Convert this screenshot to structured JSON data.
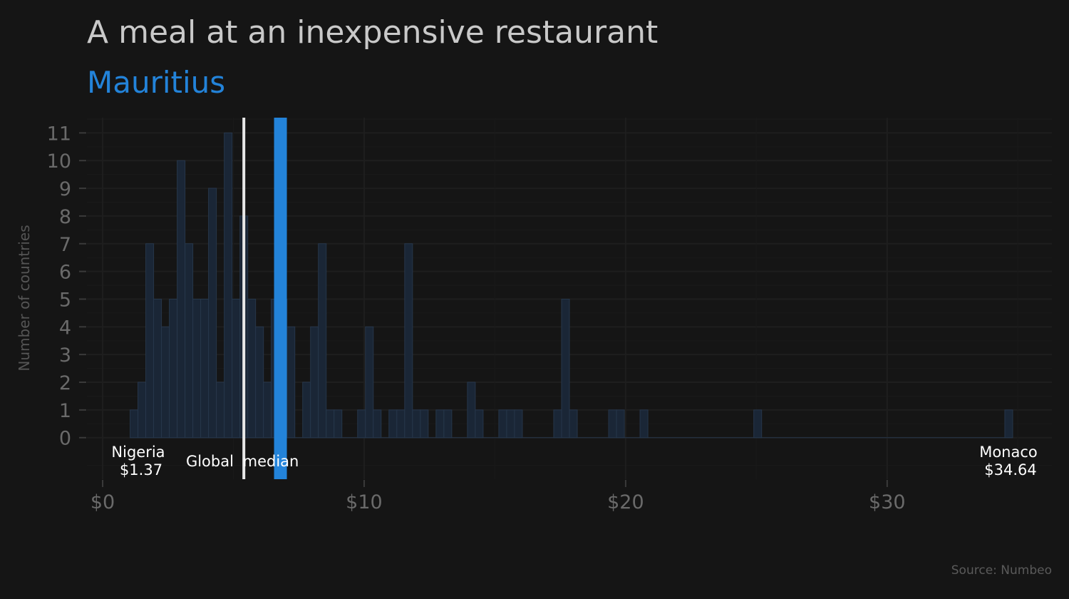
{
  "chart_data": {
    "type": "bar",
    "title": "A meal at an inexpensive restaurant",
    "subtitle": "Mauritius",
    "ylabel": "Number of countries",
    "xlabel": "",
    "bin_width": 0.3,
    "bins": [
      {
        "x0": 1.05,
        "count": 1
      },
      {
        "x0": 1.35,
        "count": 2
      },
      {
        "x0": 1.65,
        "count": 7
      },
      {
        "x0": 1.95,
        "count": 5
      },
      {
        "x0": 2.25,
        "count": 4
      },
      {
        "x0": 2.55,
        "count": 5
      },
      {
        "x0": 2.85,
        "count": 10
      },
      {
        "x0": 3.15,
        "count": 7
      },
      {
        "x0": 3.45,
        "count": 5
      },
      {
        "x0": 3.75,
        "count": 5
      },
      {
        "x0": 4.05,
        "count": 9
      },
      {
        "x0": 4.35,
        "count": 2
      },
      {
        "x0": 4.65,
        "count": 11
      },
      {
        "x0": 4.95,
        "count": 5
      },
      {
        "x0": 5.25,
        "count": 8
      },
      {
        "x0": 5.55,
        "count": 5
      },
      {
        "x0": 5.85,
        "count": 4
      },
      {
        "x0": 6.15,
        "count": 2
      },
      {
        "x0": 6.45,
        "count": 5
      },
      {
        "x0": 6.75,
        "count": 5
      },
      {
        "x0": 7.05,
        "count": 4
      },
      {
        "x0": 7.35,
        "count": 0
      },
      {
        "x0": 7.65,
        "count": 2
      },
      {
        "x0": 7.95,
        "count": 4
      },
      {
        "x0": 8.25,
        "count": 7
      },
      {
        "x0": 8.55,
        "count": 1
      },
      {
        "x0": 8.85,
        "count": 1
      },
      {
        "x0": 9.75,
        "count": 1
      },
      {
        "x0": 10.05,
        "count": 4
      },
      {
        "x0": 10.35,
        "count": 1
      },
      {
        "x0": 10.95,
        "count": 1
      },
      {
        "x0": 11.25,
        "count": 1
      },
      {
        "x0": 11.55,
        "count": 7
      },
      {
        "x0": 11.85,
        "count": 1
      },
      {
        "x0": 12.15,
        "count": 1
      },
      {
        "x0": 12.75,
        "count": 1
      },
      {
        "x0": 13.05,
        "count": 1
      },
      {
        "x0": 13.95,
        "count": 2
      },
      {
        "x0": 14.25,
        "count": 1
      },
      {
        "x0": 15.15,
        "count": 1
      },
      {
        "x0": 15.45,
        "count": 1
      },
      {
        "x0": 15.75,
        "count": 1
      },
      {
        "x0": 17.25,
        "count": 1
      },
      {
        "x0": 17.55,
        "count": 5
      },
      {
        "x0": 17.85,
        "count": 1
      },
      {
        "x0": 19.35,
        "count": 1
      },
      {
        "x0": 19.65,
        "count": 1
      },
      {
        "x0": 20.55,
        "count": 1
      },
      {
        "x0": 24.9,
        "count": 1
      },
      {
        "x0": 34.5,
        "count": 1
      }
    ],
    "highlight": {
      "label": "Mauritius",
      "value": 6.8
    },
    "global_median": {
      "label": "Global median",
      "value": 5.4
    },
    "annotations": [
      {
        "name": "Nigeria",
        "value_label": "$1.37",
        "x": 1.37
      },
      {
        "name": "Monaco",
        "value_label": "$34.64",
        "x": 34.64
      }
    ],
    "x_ticks": [
      {
        "value": 0,
        "label": "$0"
      },
      {
        "value": 10,
        "label": "$10"
      },
      {
        "value": 20,
        "label": "$20"
      },
      {
        "value": 30,
        "label": "$30"
      }
    ],
    "y_ticks": [
      0,
      1,
      2,
      3,
      4,
      5,
      6,
      7,
      8,
      9,
      10,
      11
    ],
    "xlim": [
      -0.6,
      36.3
    ],
    "ylim": [
      -1.5,
      11.55
    ],
    "grid": true,
    "source": "Source: Numbeo",
    "colors": {
      "background": "#151515",
      "bar_fill": "#1a2636",
      "bar_stroke": "#26364a",
      "highlight": "#2383d9",
      "median_line": "#e8e8e8",
      "grid": "#1e1e1e"
    }
  }
}
